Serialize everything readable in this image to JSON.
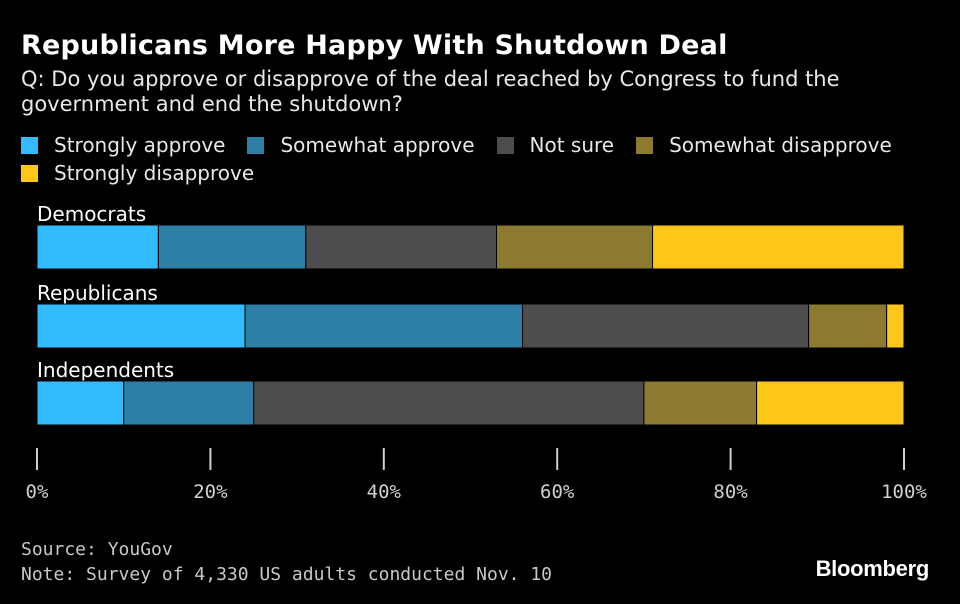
{
  "header": {
    "title": "Republicans More Happy With Shutdown Deal",
    "subtitle": "Q: Do you approve or disapprove of the deal reached by Congress to fund the government and end the shutdown?"
  },
  "legend": [
    {
      "label": "Strongly approve",
      "color": "#33bbff"
    },
    {
      "label": "Somewhat approve",
      "color": "#2e7fa6"
    },
    {
      "label": "Not sure",
      "color": "#4d4d4d"
    },
    {
      "label": "Somewhat disapprove",
      "color": "#8c7a30"
    },
    {
      "label": "Strongly disapprove",
      "color": "#ffc61a"
    }
  ],
  "chart_data": {
    "type": "bar",
    "orientation": "horizontal",
    "stacked": true,
    "categories": [
      "Democrats",
      "Republicans",
      "Independents"
    ],
    "series": [
      {
        "name": "Strongly approve",
        "color": "#33bbff",
        "values": [
          14,
          24,
          10
        ]
      },
      {
        "name": "Somewhat approve",
        "color": "#2e7fa6",
        "values": [
          17,
          32,
          15
        ]
      },
      {
        "name": "Not sure",
        "color": "#4d4d4d",
        "values": [
          22,
          33,
          45
        ]
      },
      {
        "name": "Somewhat disapprove",
        "color": "#8c7a30",
        "values": [
          18,
          9,
          13
        ]
      },
      {
        "name": "Strongly disapprove",
        "color": "#ffc61a",
        "values": [
          29,
          2,
          17
        ]
      }
    ],
    "xlim": [
      0,
      100
    ],
    "xticks": [
      "0%",
      "20%",
      "40%",
      "60%",
      "80%",
      "100%"
    ],
    "legend_position": "top"
  },
  "footer": {
    "source": "Source: YouGov",
    "note": "Note: Survey of 4,330 US adults conducted Nov. 10",
    "brand": "Bloomberg"
  }
}
